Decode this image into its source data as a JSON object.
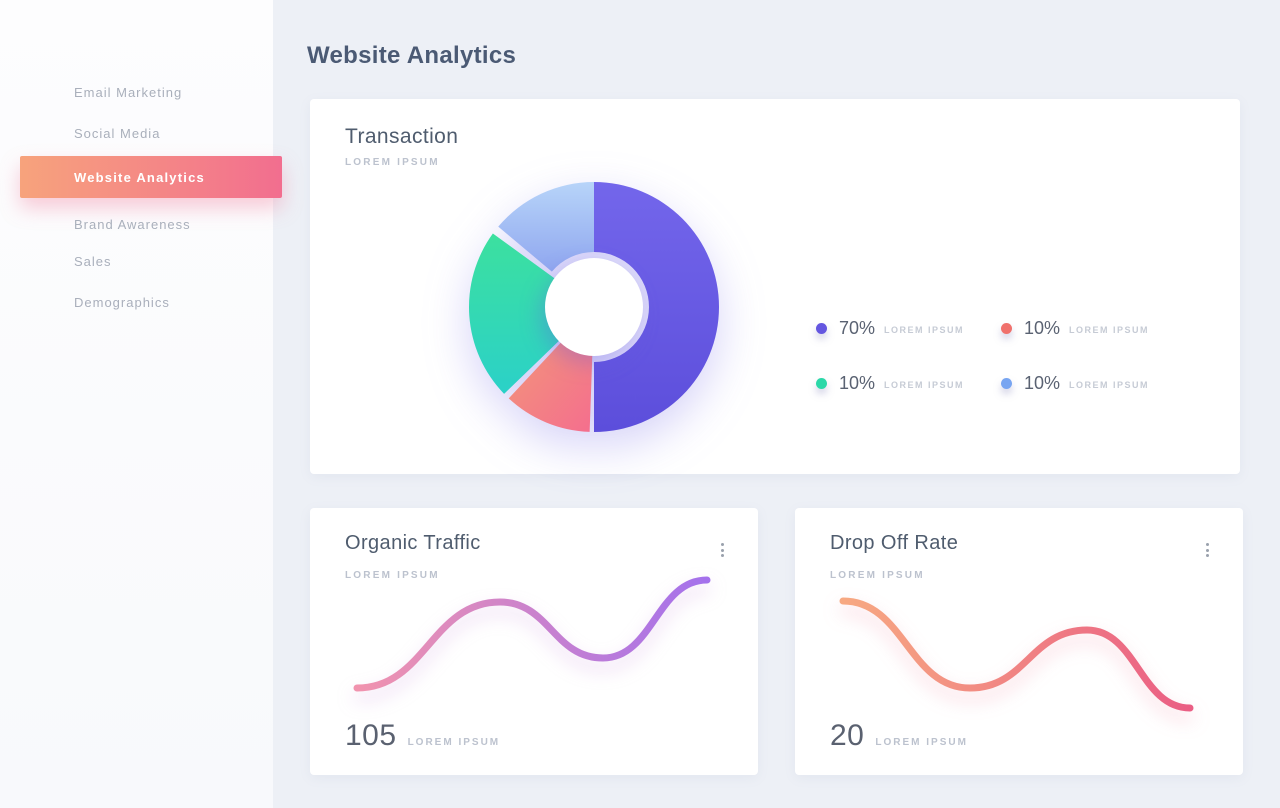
{
  "app": {
    "background": "#edf0f6",
    "sidebar_bg": "#fbfbfd",
    "card_bg": "#ffffff",
    "accent_gradient": [
      "#f7a37c",
      "#f26e8f"
    ]
  },
  "header": {
    "title": "Website Analytics"
  },
  "sidebar": {
    "items": [
      {
        "label": "Email Marketing",
        "active": false
      },
      {
        "label": "Social Media",
        "active": false
      },
      {
        "label": "Website Analytics",
        "active": true
      },
      {
        "label": "Brand Awareness",
        "active": false
      },
      {
        "label": "Sales",
        "active": false
      },
      {
        "label": "Demographics",
        "active": false
      }
    ]
  },
  "cards": {
    "transaction": {
      "title": "Transaction",
      "subtitle": "LOREM IPSUM"
    },
    "organic": {
      "title": "Organic Traffic",
      "subtitle": "LOREM IPSUM",
      "value": "105",
      "value_label": "LOREM IPSUM"
    },
    "dropoff": {
      "title": "Drop Off Rate",
      "subtitle": "LOREM IPSUM",
      "value": "20",
      "value_label": "LOREM IPSUM"
    }
  },
  "chart_data": [
    {
      "type": "pie",
      "title": "Transaction",
      "donut": true,
      "outer_radius": 125,
      "hole_radius": 49,
      "segments": [
        {
          "label": "LOREM IPSUM",
          "percent": 70,
          "color": "#675ae4",
          "display_start_deg": 0,
          "display_end_deg": 180,
          "inner_radius": 55,
          "grad": {
            "from": "#7366eb",
            "to": "#5c4edb",
            "dir": [
              0,
              0,
              0,
              1
            ]
          }
        },
        {
          "label": "LOREM IPSUM",
          "percent": 10,
          "color": "#f4788a",
          "display_start_deg": 182,
          "display_end_deg": 223,
          "inner_radius": 30,
          "grad": {
            "from": "#f29779",
            "to": "#f46e8e",
            "dir": [
              0,
              0,
              1,
              1
            ]
          }
        },
        {
          "label": "LOREM IPSUM",
          "percent": 10,
          "color": "#30d9ae",
          "display_start_deg": 226,
          "display_end_deg": 306,
          "inner_radius": 30,
          "grad": {
            "from": "#3ce09f",
            "to": "#2bd1c8",
            "dir": [
              0,
              0,
              0,
              1
            ]
          }
        },
        {
          "label": "LOREM IPSUM",
          "percent": 10,
          "color": "#9dbdf4",
          "display_start_deg": 310,
          "display_end_deg": 360,
          "inner_radius": 55,
          "grad": {
            "from": "#b7d4f9",
            "to": "#8fa6ef",
            "dir": [
              0,
              0,
              0,
              1
            ]
          }
        }
      ],
      "legend": [
        {
          "percent": "70%",
          "label": "LOREM IPSUM",
          "color": "#6456e0"
        },
        {
          "percent": "10%",
          "label": "LOREM IPSUM",
          "color": "#f0716c"
        },
        {
          "percent": "10%",
          "label": "LOREM IPSUM",
          "color": "#2bd8a8"
        },
        {
          "percent": "10%",
          "label": "LOREM IPSUM",
          "color": "#78a5f1"
        }
      ],
      "legend_position": "right"
    },
    {
      "type": "line",
      "title": "Organic Traffic",
      "value": 105,
      "points": [
        [
          47,
          180
        ],
        [
          190,
          94
        ],
        [
          293,
          150
        ],
        [
          397,
          72
        ]
      ],
      "stroke_width": 7,
      "gradient": [
        "#f193ae",
        "#a471ec"
      ],
      "grid": false,
      "axes": false
    },
    {
      "type": "line",
      "title": "Drop Off Rate",
      "value": 20,
      "points": [
        [
          48,
          93
        ],
        [
          175,
          180
        ],
        [
          292,
          122
        ],
        [
          395,
          200
        ]
      ],
      "stroke_width": 7,
      "gradient": [
        "#f7a982",
        "#ea5e84"
      ],
      "grid": false,
      "axes": false
    }
  ]
}
